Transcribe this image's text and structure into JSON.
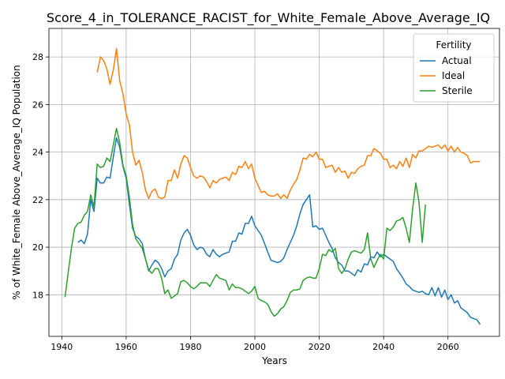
{
  "chart_data": {
    "type": "line",
    "title": "Score_4_in_TOLERANCE_RACIST_for_White_Female_Above_Average_IQ",
    "xlabel": "Years",
    "ylabel": "% of White_Female Above_Average_IQ Population",
    "xlim": [
      1936,
      2076
    ],
    "ylim": [
      16.25,
      29.2
    ],
    "xticks": [
      1940,
      1960,
      1980,
      2000,
      2020,
      2040,
      2060
    ],
    "yticks": [
      18,
      20,
      22,
      24,
      26,
      28
    ],
    "grid": true,
    "legend": {
      "title": "Fertility",
      "placement": "top-right"
    },
    "series": [
      {
        "name": "Actual",
        "color": "#1f77b4",
        "x": [
          1945,
          1946,
          1947,
          1948,
          1949,
          1950,
          1951,
          1952,
          1953,
          1954,
          1955,
          1956,
          1957,
          1958,
          1959,
          1960,
          1961,
          1962,
          1963,
          1964,
          1965,
          1966,
          1967,
          1968,
          1969,
          1970,
          1971,
          1972,
          1973,
          1974,
          1975,
          1976,
          1977,
          1978,
          1979,
          1980,
          1981,
          1982,
          1983,
          1984,
          1985,
          1986,
          1987,
          1988,
          1989,
          1990,
          1991,
          1992,
          1993,
          1994,
          1995,
          1996,
          1997,
          1998,
          1999,
          2000,
          2001,
          2002,
          2003,
          2004,
          2005,
          2006,
          2007,
          2008,
          2009,
          2010,
          2011,
          2012,
          2013,
          2014,
          2015,
          2016,
          2017,
          2018,
          2019,
          2020,
          2021,
          2022,
          2023,
          2024,
          2025,
          2026,
          2027,
          2028,
          2029,
          2030,
          2031,
          2032,
          2033,
          2034,
          2035,
          2036,
          2037,
          2038,
          2039,
          2040,
          2041,
          2042,
          2043,
          2044,
          2045,
          2046,
          2047,
          2048,
          2049,
          2050,
          2051,
          2052,
          2053,
          2054,
          2055,
          2056,
          2057,
          2058,
          2059,
          2060,
          2061,
          2062,
          2063,
          2064,
          2065,
          2066,
          2067,
          2068,
          2069,
          2070
        ],
        "values": [
          20.2,
          20.3,
          20.15,
          20.55,
          22.0,
          21.5,
          22.9,
          22.7,
          22.7,
          22.95,
          22.9,
          23.8,
          24.6,
          24.2,
          23.4,
          22.9,
          21.8,
          20.8,
          20.45,
          20.35,
          20.15,
          19.5,
          19.0,
          19.25,
          19.45,
          19.35,
          19.1,
          18.75,
          19.0,
          19.1,
          19.5,
          19.7,
          20.3,
          20.6,
          20.75,
          20.5,
          20.1,
          19.9,
          20.0,
          19.95,
          19.7,
          19.6,
          19.9,
          19.7,
          19.6,
          19.7,
          19.75,
          19.8,
          20.25,
          20.25,
          20.6,
          20.55,
          21.0,
          21.0,
          21.3,
          20.9,
          20.7,
          20.5,
          20.15,
          19.8,
          19.45,
          19.4,
          19.35,
          19.4,
          19.55,
          19.9,
          20.2,
          20.5,
          20.9,
          21.4,
          21.8,
          22.0,
          22.2,
          20.85,
          20.9,
          20.75,
          20.8,
          20.5,
          20.2,
          19.95,
          19.55,
          19.35,
          19.25,
          19.0,
          19.0,
          18.9,
          18.8,
          19.05,
          18.95,
          19.3,
          19.25,
          19.6,
          19.55,
          19.8,
          19.6,
          19.7,
          19.6,
          19.5,
          19.4,
          19.1,
          18.9,
          18.7,
          18.45,
          18.35,
          18.2,
          18.15,
          18.1,
          18.15,
          18.05,
          18.0,
          18.3,
          17.95,
          18.3,
          17.9,
          18.2,
          17.8,
          18.0,
          17.65,
          17.75,
          17.45,
          17.35,
          17.25,
          17.05,
          17.0,
          16.95,
          16.75
        ]
      },
      {
        "name": "Ideal",
        "color": "#ff7f0e",
        "x": [
          1951,
          1952,
          1953,
          1954,
          1955,
          1956,
          1957,
          1958,
          1959,
          1960,
          1961,
          1962,
          1963,
          1964,
          1965,
          1966,
          1967,
          1968,
          1969,
          1970,
          1971,
          1972,
          1973,
          1974,
          1975,
          1976,
          1977,
          1978,
          1979,
          1980,
          1981,
          1982,
          1983,
          1984,
          1985,
          1986,
          1987,
          1988,
          1989,
          1990,
          1991,
          1992,
          1993,
          1994,
          1995,
          1996,
          1997,
          1998,
          1999,
          2000,
          2001,
          2002,
          2003,
          2004,
          2005,
          2006,
          2007,
          2008,
          2009,
          2010,
          2011,
          2012,
          2013,
          2014,
          2015,
          2016,
          2017,
          2018,
          2019,
          2020,
          2021,
          2022,
          2023,
          2024,
          2025,
          2026,
          2027,
          2028,
          2029,
          2030,
          2031,
          2032,
          2033,
          2034,
          2035,
          2036,
          2037,
          2038,
          2039,
          2040,
          2041,
          2042,
          2043,
          2044,
          2045,
          2046,
          2047,
          2048,
          2049,
          2050,
          2051,
          2052,
          2053,
          2054,
          2055,
          2056,
          2057,
          2058,
          2059,
          2060,
          2061,
          2062,
          2063,
          2064,
          2065,
          2066,
          2067,
          2068,
          2069,
          2070
        ],
        "values": [
          27.35,
          28.0,
          27.85,
          27.5,
          26.85,
          27.45,
          28.35,
          27.0,
          26.45,
          25.6,
          25.15,
          24.0,
          23.45,
          23.65,
          23.15,
          22.4,
          22.05,
          22.35,
          22.45,
          22.1,
          22.05,
          22.1,
          22.8,
          22.8,
          23.25,
          22.9,
          23.5,
          23.85,
          23.75,
          23.35,
          23.0,
          22.9,
          23.0,
          22.95,
          22.75,
          22.5,
          22.8,
          22.7,
          22.85,
          22.9,
          22.95,
          22.8,
          23.15,
          23.05,
          23.4,
          23.35,
          23.6,
          23.3,
          23.5,
          22.9,
          22.6,
          22.3,
          22.35,
          22.2,
          22.15,
          22.15,
          22.25,
          22.05,
          22.2,
          22.05,
          22.4,
          22.65,
          22.85,
          23.25,
          23.75,
          23.7,
          23.9,
          23.8,
          24.0,
          23.7,
          23.7,
          23.35,
          23.4,
          23.45,
          23.15,
          23.35,
          23.15,
          23.2,
          22.9,
          23.15,
          23.1,
          23.3,
          23.4,
          23.45,
          23.85,
          23.85,
          24.15,
          24.05,
          23.95,
          23.7,
          23.7,
          23.35,
          23.45,
          23.3,
          23.6,
          23.4,
          23.75,
          23.35,
          23.9,
          23.75,
          24.05,
          24.05,
          24.15,
          24.25,
          24.2,
          24.25,
          24.3,
          24.15,
          24.3,
          24.05,
          24.25,
          24.0,
          24.2,
          24.0,
          23.95,
          23.85,
          23.55,
          23.6,
          23.6,
          23.6
        ]
      },
      {
        "name": "Sterile",
        "color": "#2ca02c",
        "x": [
          1941,
          1942,
          1943,
          1944,
          1945,
          1946,
          1947,
          1948,
          1949,
          1950,
          1951,
          1952,
          1953,
          1954,
          1955,
          1956,
          1957,
          1958,
          1959,
          1960,
          1961,
          1962,
          1963,
          1964,
          1965,
          1966,
          1967,
          1968,
          1969,
          1970,
          1971,
          1972,
          1973,
          1974,
          1975,
          1976,
          1977,
          1978,
          1979,
          1980,
          1981,
          1982,
          1983,
          1984,
          1985,
          1986,
          1987,
          1988,
          1989,
          1990,
          1991,
          1992,
          1993,
          1994,
          1995,
          1996,
          1997,
          1998,
          1999,
          2000,
          2001,
          2002,
          2003,
          2004,
          2005,
          2006,
          2007,
          2008,
          2009,
          2010,
          2011,
          2012,
          2013,
          2014,
          2015,
          2016,
          2017,
          2018,
          2019,
          2020,
          2021,
          2022,
          2023,
          2024,
          2025,
          2026,
          2027,
          2028,
          2029,
          2030,
          2031,
          2032,
          2033,
          2034,
          2035,
          2036,
          2037,
          2038,
          2039,
          2040,
          2041,
          2042,
          2043,
          2044,
          2045,
          2046,
          2047,
          2048,
          2049,
          2050,
          2051,
          2052,
          2053
        ],
        "values": [
          17.9,
          18.95,
          19.95,
          20.8,
          21.0,
          21.05,
          21.35,
          21.5,
          22.2,
          21.7,
          23.5,
          23.35,
          23.4,
          23.75,
          23.6,
          24.3,
          25.0,
          24.4,
          23.45,
          23.0,
          22.1,
          20.95,
          20.35,
          20.15,
          19.95,
          19.5,
          19.05,
          18.9,
          19.1,
          19.1,
          18.7,
          18.05,
          18.2,
          17.85,
          17.95,
          18.05,
          18.55,
          18.6,
          18.5,
          18.35,
          18.25,
          18.35,
          18.5,
          18.5,
          18.5,
          18.35,
          18.6,
          18.85,
          18.7,
          18.65,
          18.6,
          18.2,
          18.45,
          18.3,
          18.3,
          18.25,
          18.15,
          18.05,
          18.15,
          18.35,
          17.85,
          17.75,
          17.7,
          17.6,
          17.3,
          17.1,
          17.2,
          17.4,
          17.5,
          17.75,
          18.1,
          18.2,
          18.2,
          18.25,
          18.6,
          18.7,
          18.75,
          18.7,
          18.7,
          19.1,
          19.7,
          19.65,
          19.9,
          19.8,
          19.95,
          19.1,
          18.9,
          19.1,
          19.5,
          19.8,
          19.85,
          19.8,
          19.75,
          19.9,
          20.6,
          19.5,
          19.15,
          19.45,
          19.7,
          19.5,
          20.8,
          20.7,
          20.85,
          21.1,
          21.15,
          21.25,
          20.8,
          20.2,
          21.6,
          22.7,
          21.9,
          20.2,
          21.8
        ]
      }
    ]
  }
}
